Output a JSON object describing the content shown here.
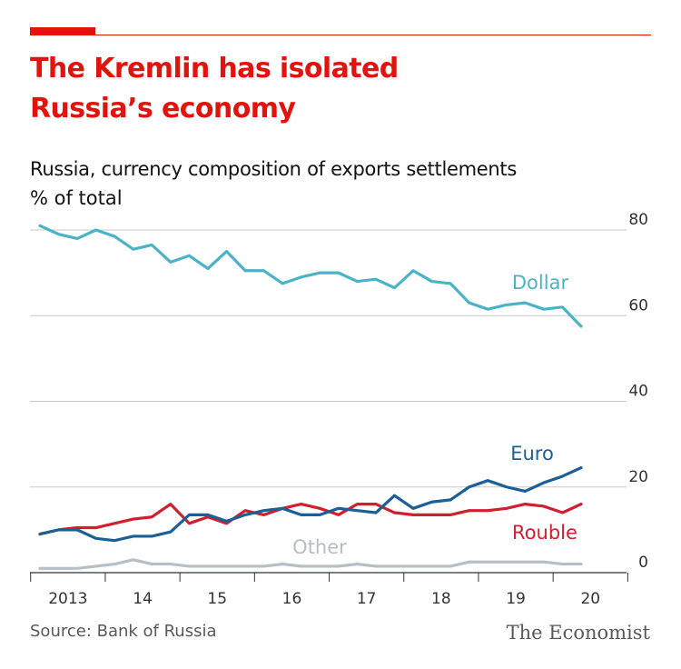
{
  "header": {
    "title_line1": "The Kremlin has isolated",
    "title_line2": "Russia’s economy",
    "subtitle": "Russia, currency composition of exports settlements",
    "unit": "% of total"
  },
  "footer": {
    "source": "Source: Bank of Russia",
    "brand": "The Economist"
  },
  "colors": {
    "accent": "#e3120b",
    "dollar": "#4ab4c6",
    "euro": "#1a5f96",
    "rouble": "#d0202e",
    "other": "#b5bfc5",
    "grid": "#c8c8c8"
  },
  "chart_data": {
    "type": "line",
    "ylim": [
      0,
      80
    ],
    "yticks": [
      0,
      20,
      40,
      60,
      80
    ],
    "x_ticks": [
      "2013",
      "14",
      "15",
      "16",
      "17",
      "18",
      "19",
      "20"
    ],
    "x": [
      "2013Q1",
      "2013Q2",
      "2013Q3",
      "2013Q4",
      "2014Q1",
      "2014Q2",
      "2014Q3",
      "2014Q4",
      "2015Q1",
      "2015Q2",
      "2015Q3",
      "2015Q4",
      "2016Q1",
      "2016Q2",
      "2016Q3",
      "2016Q4",
      "2017Q1",
      "2017Q2",
      "2017Q3",
      "2017Q4",
      "2018Q1",
      "2018Q2",
      "2018Q3",
      "2018Q4",
      "2019Q1",
      "2019Q2",
      "2019Q3",
      "2019Q4",
      "2020Q1",
      "2020Q2"
    ],
    "series": [
      {
        "name": "Dollar",
        "color": "#4ab4c6",
        "values": [
          81,
          79,
          78,
          80,
          78.5,
          75.5,
          76.5,
          72.5,
          74,
          71,
          75,
          70.5,
          70.5,
          67.5,
          69,
          70,
          70,
          68,
          68.5,
          66.5,
          70.5,
          68,
          67.5,
          63,
          61.5,
          62.5,
          63,
          61.5,
          62,
          57.5
        ]
      },
      {
        "name": "Euro",
        "color": "#1a5f96",
        "values": [
          9,
          10,
          10,
          8,
          7.5,
          8.5,
          8.5,
          9.5,
          13.5,
          13.5,
          12,
          13.5,
          14.5,
          15,
          13.5,
          13.5,
          15,
          14.5,
          14,
          18,
          15,
          16.5,
          17,
          20,
          21.5,
          20,
          19,
          21,
          22.5,
          24.5
        ]
      },
      {
        "name": "Rouble",
        "color": "#d0202e",
        "values": [
          9,
          10,
          10.5,
          10.5,
          11.5,
          12.5,
          13,
          16,
          11.5,
          13,
          11.5,
          14.5,
          13.5,
          15,
          16,
          15,
          13.5,
          16,
          16,
          14,
          13.5,
          13.5,
          13.5,
          14.5,
          14.5,
          15,
          16,
          15.5,
          14,
          16
        ]
      },
      {
        "name": "Other",
        "color": "#b5bfc5",
        "values": [
          1,
          1,
          1,
          1.5,
          2,
          3,
          2,
          2,
          1.5,
          1.5,
          1.5,
          1.5,
          1.5,
          2,
          1.5,
          1.5,
          1.5,
          2,
          1.5,
          1.5,
          1.5,
          1.5,
          1.5,
          2.5,
          2.5,
          2.5,
          2.5,
          2.5,
          2,
          2
        ]
      }
    ],
    "series_labels": [
      {
        "name": "Dollar",
        "text": "Dollar"
      },
      {
        "name": "Euro",
        "text": "Euro"
      },
      {
        "name": "Rouble",
        "text": "Rouble"
      },
      {
        "name": "Other",
        "text": "Other"
      }
    ]
  }
}
